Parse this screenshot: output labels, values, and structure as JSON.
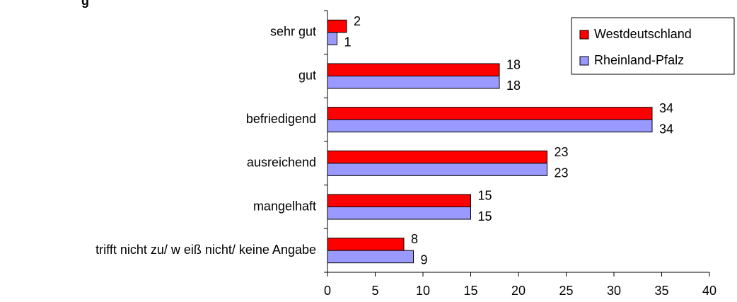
{
  "chart_data": {
    "type": "barh",
    "title": "g",
    "categories": [
      "sehr gut",
      "gut",
      "befriedigend",
      "ausreichend",
      "mangelhaft",
      "trifft nicht zu/ w eiß nicht/ keine Angabe"
    ],
    "series": [
      {
        "name": "Westdeutschland",
        "color": "#ff0000",
        "values": [
          2,
          18,
          34,
          23,
          15,
          8
        ]
      },
      {
        "name": "Rheinland-Pfalz",
        "color": "#9999ff",
        "values": [
          1,
          18,
          34,
          23,
          15,
          9
        ]
      }
    ],
    "xlim": [
      0,
      40
    ],
    "xticks": [
      0,
      5,
      10,
      15,
      20,
      25,
      30,
      35,
      40
    ],
    "legend": "top-right",
    "grid": false
  }
}
